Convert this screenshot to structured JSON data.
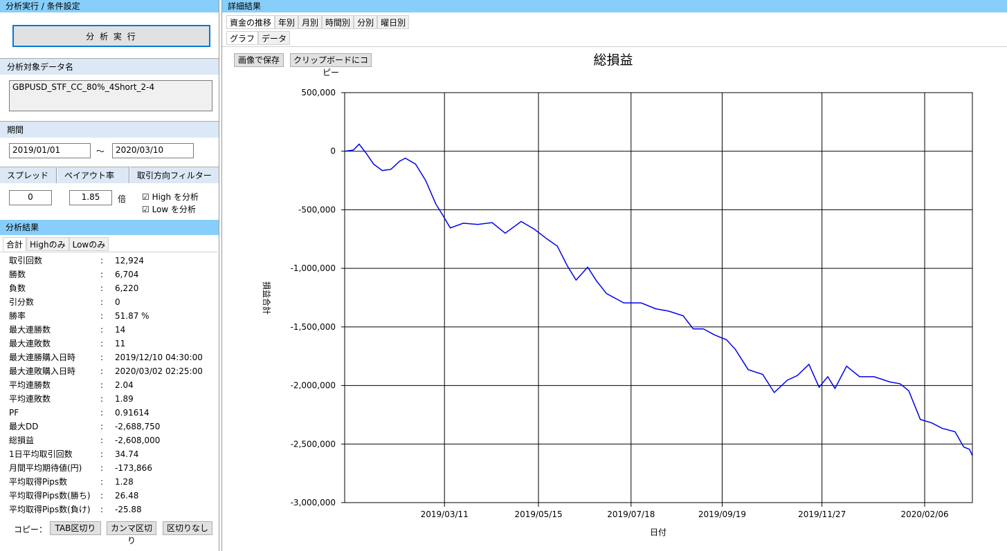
{
  "left": {
    "header": "分析実行 / 条件設定",
    "run_button": "分 析 実 行",
    "data_name": {
      "title": "分析対象データ名",
      "value": "GBPUSD_STF_CC_80%_4Short_2-4"
    },
    "period": {
      "title": "期間",
      "start": "2019/01/01",
      "tilde": "～",
      "end": "2020/03/10"
    },
    "spread": {
      "title": "スプレッド",
      "value": "0"
    },
    "payout": {
      "title": "ペイアウト率",
      "value": "1.85",
      "unit": "倍"
    },
    "filter": {
      "title": "取引方向フィルター",
      "options": [
        "High を分析",
        "Low を分析"
      ]
    },
    "results": {
      "title": "分析結果",
      "tabs": [
        "合計",
        "Highのみ",
        "Lowのみ"
      ],
      "separator": ":",
      "rows": [
        [
          "取引回数",
          "12,924"
        ],
        [
          "勝数",
          "6,704"
        ],
        [
          "負数",
          "6,220"
        ],
        [
          "引分数",
          "0"
        ],
        [
          "勝率",
          "51.87 %"
        ],
        [
          "最大連勝数",
          "14"
        ],
        [
          "最大連敗数",
          "11"
        ],
        [
          "最大連勝購入日時",
          "2019/12/10 04:30:00"
        ],
        [
          "最大連敗購入日時",
          "2020/03/02 02:25:00"
        ],
        [
          "平均連勝数",
          "2.04"
        ],
        [
          "平均連敗数",
          "1.89"
        ],
        [
          "PF",
          "0.91614"
        ],
        [
          "最大DD",
          "-2,688,750"
        ],
        [
          "総損益",
          "-2,608,000"
        ],
        [
          "1日平均取引回数",
          "34.74"
        ],
        [
          "月間平均期待値(円)",
          "-173,866"
        ],
        [
          "平均取得Pips数",
          "1.28"
        ],
        [
          "平均取得Pips数(勝ち)",
          "26.48"
        ],
        [
          "平均取得Pips数(負け)",
          "-25.88"
        ]
      ]
    },
    "copy": {
      "label": "コピー：",
      "buttons": [
        "TAB区切り",
        "カンマ区切り",
        "区切りなし"
      ]
    }
  },
  "right": {
    "header": "詳細結果",
    "tabs": [
      "資金の推移",
      "年別",
      "月別",
      "時間別",
      "分別",
      "曜日別"
    ],
    "subtabs": [
      "グラフ",
      "データ"
    ],
    "buttons": [
      "画像で保存",
      "クリップボードにコピー"
    ]
  },
  "chart_data": {
    "type": "line",
    "title": "総損益",
    "x_label": "日付",
    "y_label": "損益合計",
    "color": "#0000ee",
    "grid": true,
    "xlim": [
      "2019/01/01",
      "2020/03/10"
    ],
    "xticks": [
      "2019/03/11",
      "2019/05/15",
      "2019/07/18",
      "2019/09/19",
      "2019/11/27",
      "2020/02/06"
    ],
    "ylim": [
      -3000000,
      500000
    ],
    "yticks": [
      {
        "value": -3000000,
        "label": "-3,000,000"
      },
      {
        "value": -2500000,
        "label": "-2,500,000"
      },
      {
        "value": -2000000,
        "label": "-2,000,000"
      },
      {
        "value": -1500000,
        "label": "-1,500,000"
      },
      {
        "value": -1000000,
        "label": "-1,000,000"
      },
      {
        "value": -500000,
        "label": "-500,000"
      },
      0,
      {
        "value": 500000,
        "label": "500,000"
      }
    ],
    "x": [
      "2019/01/01",
      "2019/01/07",
      "2019/01/11",
      "2019/01/16",
      "2019/01/21",
      "2019/01/27",
      "2019/02/02",
      "2019/02/08",
      "2019/02/12",
      "2019/02/19",
      "2019/02/26",
      "2019/03/05",
      "2019/03/10",
      "2019/03/15",
      "2019/03/24",
      "2019/04/03",
      "2019/04/13",
      "2019/04/22",
      "2019/05/03",
      "2019/05/12",
      "2019/05/21",
      "2019/05/28",
      "2019/06/04",
      "2019/06/10",
      "2019/06/18",
      "2019/06/24",
      "2019/07/01",
      "2019/07/13",
      "2019/07/25",
      "2019/08/04",
      "2019/08/13",
      "2019/08/23",
      "2019/08/30",
      "2019/09/06",
      "2019/09/14",
      "2019/09/22",
      "2019/09/28",
      "2019/10/07",
      "2019/10/17",
      "2019/10/25",
      "2019/11/03",
      "2019/11/10",
      "2019/11/18",
      "2019/11/25",
      "2019/12/01",
      "2019/12/06",
      "2019/12/14",
      "2019/12/23",
      "2020/01/02",
      "2020/01/13",
      "2020/01/20",
      "2020/01/26",
      "2020/02/03",
      "2020/02/11",
      "2020/02/18",
      "2020/02/27",
      "2020/03/04",
      "2020/03/08",
      "2020/03/10"
    ],
    "values": [
      0,
      10000,
      60000,
      -20000,
      -110000,
      -165000,
      -155000,
      -85000,
      -60000,
      -110000,
      -250000,
      -450000,
      -550000,
      -655000,
      -615000,
      -625000,
      -610000,
      -700000,
      -600000,
      -665000,
      -750000,
      -810000,
      -980000,
      -1100000,
      -990000,
      -1105000,
      -1215000,
      -1295000,
      -1295000,
      -1345000,
      -1365000,
      -1405000,
      -1517000,
      -1517000,
      -1570000,
      -1610000,
      -1690000,
      -1865000,
      -1905000,
      -2060000,
      -1955000,
      -1915000,
      -1820000,
      -2015000,
      -1925000,
      -2025000,
      -1835000,
      -1925000,
      -1925000,
      -1970000,
      -1985000,
      -2045000,
      -2290000,
      -2320000,
      -2365000,
      -2395000,
      -2525000,
      -2545000,
      -2600000
    ]
  }
}
